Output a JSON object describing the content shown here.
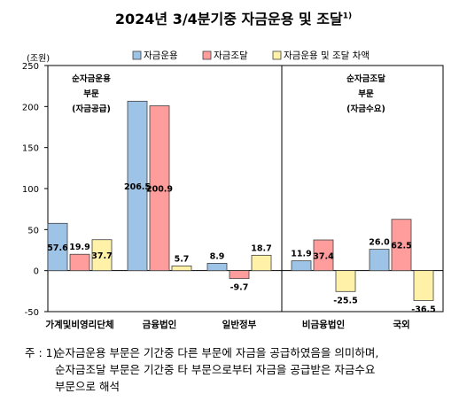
{
  "title": "2024년 3/4분기중 자금운용 및 조달",
  "title_sup": "1)",
  "chart_data": {
    "type": "bar",
    "unit_label": "(조원)",
    "categories": [
      "가계및비영리단체",
      "금융법인",
      "일반정부",
      "비금융법인",
      "국외"
    ],
    "series": [
      {
        "name": "자금운용",
        "color": "#9dc3e6",
        "values": [
          57.6,
          206.5,
          8.9,
          11.9,
          26.0
        ]
      },
      {
        "name": "자금조달",
        "color": "#ff9d9d",
        "values": [
          19.9,
          200.9,
          -9.7,
          37.4,
          62.5
        ]
      },
      {
        "name": "자금운용 및 조달 차액",
        "color": "#fff2a8",
        "values": [
          37.7,
          5.7,
          18.7,
          -25.5,
          -36.5
        ]
      }
    ],
    "value_labels": [
      [
        "57.6",
        "19.9",
        "37.7"
      ],
      [
        "206.5",
        "200.9",
        "5.7"
      ],
      [
        "8.9",
        "-9.7",
        "18.7"
      ],
      [
        "11.9",
        "37.4",
        "-25.5"
      ],
      [
        "26.0",
        "62.5",
        "-36.5"
      ]
    ],
    "ylim": [
      -50,
      250
    ],
    "yticks": [
      -50,
      0,
      50,
      100,
      150,
      200,
      250
    ],
    "ytick_labels": [
      "-50",
      "0",
      "50",
      "100",
      "150",
      "200",
      "250"
    ],
    "legend_position": "top",
    "panel_left_annotation": [
      "순자금운용",
      "부문",
      "(자금공급)"
    ],
    "panel_right_annotation": [
      "순자금조달",
      "부문",
      "(자금수요)"
    ]
  },
  "footnote": {
    "prefix": "주 : 1)",
    "lines": [
      "순자금운용 부문은 기간중 다른 부문에 자금을 공급하였음을 의미하며,",
      "순자금조달 부문은 기간중 타 부문으로부터 자금을 공급받은 자금수요",
      "부문으로 해석"
    ]
  }
}
